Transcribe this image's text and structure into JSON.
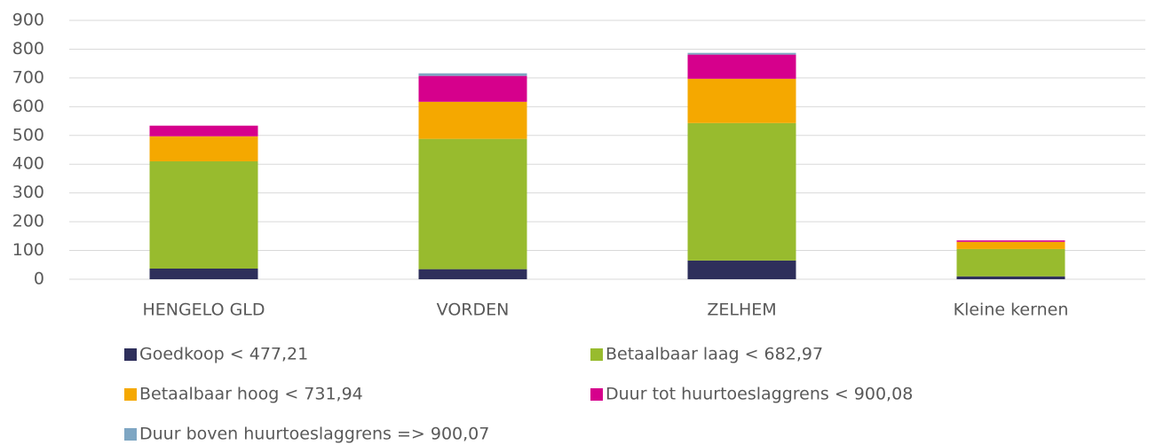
{
  "chart_data": {
    "type": "stacked_bar",
    "categories": [
      "HENGELO GLD",
      "VORDEN",
      "ZELHEM",
      "Kleine kernen"
    ],
    "series": [
      {
        "name": "Goedkoop < 477,21",
        "color": "#2e2f5b",
        "values": [
          37,
          35,
          65,
          10
        ]
      },
      {
        "name": "Betaalbaar laag < 682,97",
        "color": "#98bb2e",
        "values": [
          373,
          453,
          478,
          95
        ]
      },
      {
        "name": "Betaalbaar hoog < 731,94",
        "color": "#f5a800",
        "values": [
          87,
          129,
          154,
          25
        ]
      },
      {
        "name": "Duur tot huurtoeslaggrens < 900,08",
        "color": "#d6008c",
        "values": [
          37,
          90,
          84,
          5
        ]
      },
      {
        "name": "Duur boven huurtoeslaggrens => 900,07",
        "color": "#7ea6c3",
        "values": [
          0,
          9,
          6,
          0
        ]
      }
    ],
    "ylim": [
      0,
      900
    ],
    "yticks": [
      0,
      100,
      200,
      300,
      400,
      500,
      600,
      700,
      800,
      900
    ],
    "grid": true
  }
}
